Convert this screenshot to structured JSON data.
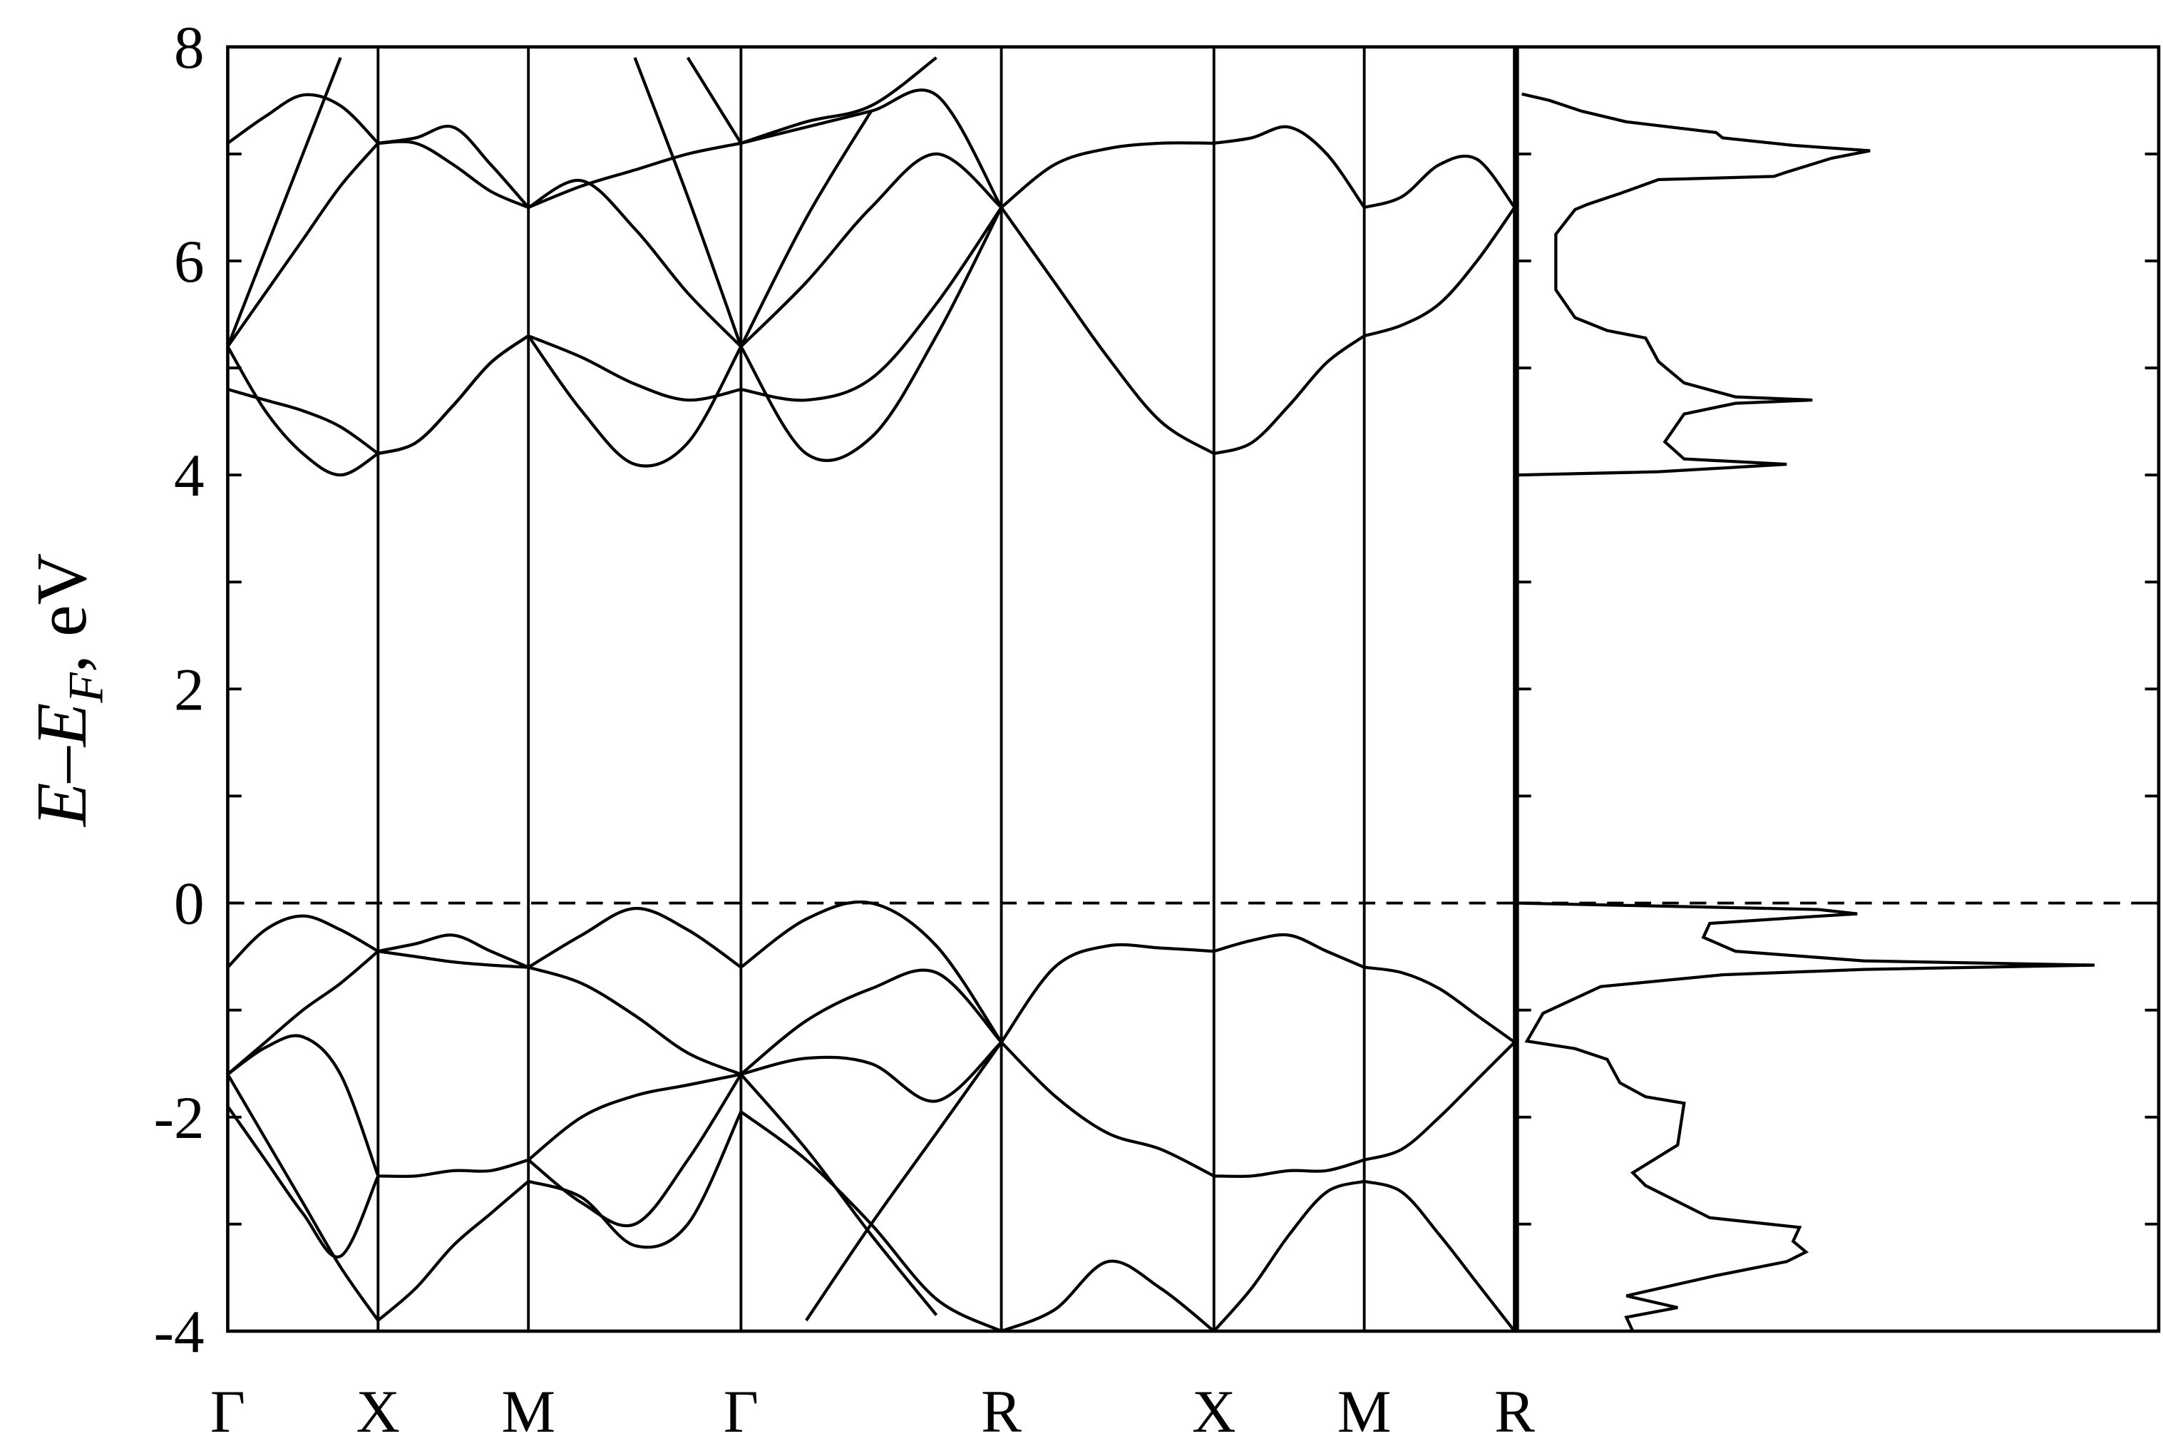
{
  "chart_data": {
    "type": "line",
    "ylabel": [
      "E",
      "–",
      "E",
      "F",
      ", eV"
    ],
    "color": "#000000",
    "xlim": [
      0,
      4.28
    ],
    "xticks": [
      {
        "value": 0,
        "label": "Γ"
      },
      {
        "value": 0.5,
        "label": "X"
      },
      {
        "value": 1.0,
        "label": "M"
      },
      {
        "value": 1.707,
        "label": "Γ"
      },
      {
        "value": 2.573,
        "label": "R"
      },
      {
        "value": 3.28,
        "label": "X"
      },
      {
        "value": 3.78,
        "label": "M"
      },
      {
        "value": 4.28,
        "label": "R"
      }
    ],
    "xgrid": true,
    "ylim": [
      -4,
      8
    ],
    "yticks": [
      -4,
      -2,
      0,
      2,
      4,
      6,
      8
    ],
    "yminorticks": [
      -3,
      -1,
      1,
      3,
      5,
      7
    ],
    "hline": 0,
    "hline_style": "dashed",
    "x": [
      0,
      0.125,
      0.25,
      0.375,
      0.5,
      0.625,
      0.75,
      0.875,
      1.0,
      1.177,
      1.354,
      1.53,
      1.707,
      1.924,
      2.14,
      2.357,
      2.573,
      2.75,
      2.927,
      3.103,
      3.28,
      3.405,
      3.53,
      3.655,
      3.78,
      3.905,
      4.03,
      4.155,
      4.28
    ],
    "series": [
      {
        "values": [
          -0.6,
          -0.25,
          -0.12,
          -0.25,
          -0.45,
          -0.38,
          -0.3,
          -0.45,
          -0.6,
          -0.3,
          -0.05,
          -0.25,
          -0.6,
          -0.15,
          0,
          -0.4,
          -1.3,
          -0.6,
          -0.4,
          -0.42,
          -0.45,
          -0.35,
          -0.3,
          -0.45,
          -0.6,
          -0.65,
          -0.8,
          -1.05,
          -1.3
        ]
      },
      {
        "values": [
          -1.6,
          -1.3,
          -1.0,
          -0.75,
          -0.45,
          -0.5,
          -0.55,
          -0.58,
          -0.6,
          -0.75,
          -1.05,
          -1.4,
          -1.6,
          -1.1,
          -0.8,
          -0.65,
          -1.3,
          -1.8,
          -2.15,
          -2.3,
          -2.55,
          -2.55,
          -2.5,
          -2.5,
          -2.4,
          -2.3,
          -2.0,
          -1.65,
          -1.3
        ]
      },
      {
        "values": [
          -1.6,
          -1.35,
          -1.25,
          -1.6,
          -2.55,
          -2.55,
          -2.5,
          -2.5,
          -2.4,
          -2.0,
          -1.8,
          -1.7,
          -1.6,
          -1.45,
          -1.5,
          -1.85,
          -1.3,
          null,
          null,
          null,
          null,
          null,
          null,
          null,
          null,
          null,
          null,
          null,
          null
        ]
      },
      {
        "values": [
          -1.9,
          -2.4,
          -2.9,
          -3.3,
          -2.55,
          null,
          null,
          null,
          -2.4,
          -2.8,
          -3.0,
          -2.4,
          -1.6,
          -2.3,
          -3.1,
          -3.85,
          null,
          null,
          null,
          null,
          null,
          null,
          null,
          null,
          null,
          null,
          null,
          null,
          null
        ]
      },
      {
        "values": [
          -1.6,
          -2.2,
          -2.8,
          -3.4,
          -3.9,
          -3.6,
          -3.2,
          -2.9,
          -2.6,
          -2.75,
          -3.2,
          -3.0,
          -1.95,
          -2.4,
          -3.0,
          -3.7,
          -4.0,
          -3.8,
          -3.35,
          -3.6,
          -4.0,
          -3.6,
          -3.1,
          -2.7,
          -2.6,
          -2.7,
          -3.1,
          -3.55,
          -4.0
        ]
      },
      {
        "values": [
          null,
          null,
          null,
          null,
          null,
          null,
          null,
          null,
          null,
          null,
          null,
          null,
          null,
          -3.9,
          -3.0,
          -2.15,
          -1.3,
          null,
          null,
          null,
          null,
          null,
          null,
          null,
          null,
          null,
          null,
          null,
          null
        ]
      },
      {
        "values": [
          5.2,
          4.6,
          4.2,
          4.0,
          4.2,
          4.3,
          4.65,
          5.05,
          5.3,
          4.6,
          4.1,
          4.3,
          5.2,
          4.2,
          4.35,
          5.3,
          6.5,
          5.8,
          5.1,
          4.5,
          4.2,
          4.3,
          4.65,
          5.05,
          5.3,
          5.4,
          5.6,
          6.0,
          6.5
        ]
      },
      {
        "values": [
          4.8,
          4.7,
          4.6,
          4.45,
          4.2,
          4.3,
          4.65,
          5.05,
          5.3,
          5.1,
          4.85,
          4.7,
          4.8,
          4.7,
          4.9,
          5.6,
          6.5,
          6.9,
          7.05,
          7.1,
          7.1,
          7.15,
          7.25,
          7.0,
          6.5,
          6.6,
          6.9,
          6.95,
          6.5
        ]
      },
      {
        "values": [
          5.2,
          5.7,
          6.2,
          6.7,
          7.1,
          7.15,
          7.25,
          6.9,
          6.5,
          6.7,
          6.85,
          7.0,
          7.1,
          7.25,
          7.4,
          7.55,
          6.5,
          null,
          null,
          null,
          null,
          null,
          null,
          null,
          null,
          null,
          null,
          null,
          null
        ]
      },
      {
        "values": [
          7.1,
          7.35,
          7.55,
          7.45,
          7.1,
          7.1,
          6.9,
          6.65,
          6.5,
          6.75,
          6.3,
          5.7,
          5.2,
          5.8,
          6.5,
          7.0,
          6.5,
          null,
          null,
          null,
          null,
          null,
          null,
          null,
          null,
          null,
          null,
          null,
          null
        ]
      },
      {
        "values": [
          5.2,
          6.1,
          7.0,
          7.9,
          null,
          null,
          null,
          null,
          null,
          null,
          null,
          7.9,
          7.1,
          7.3,
          7.45,
          7.9,
          null,
          null,
          null,
          null,
          null,
          null,
          null,
          null,
          null,
          null,
          null,
          null,
          null
        ]
      },
      {
        "values": [
          null,
          null,
          null,
          null,
          null,
          null,
          null,
          null,
          null,
          null,
          7.9,
          6.6,
          5.2,
          6.4,
          7.4,
          null,
          null,
          null,
          null,
          null,
          null,
          null,
          null,
          null,
          null,
          null,
          null,
          null,
          null
        ]
      }
    ],
    "dos": {
      "xlim": [
        0,
        1
      ],
      "energy": [
        7.56,
        7.5,
        7.4,
        7.3,
        7.2,
        7.15,
        7.08,
        7.03,
        6.96,
        6.83,
        6.79,
        6.76,
        6.63,
        6.53,
        6.48,
        6.25,
        5.73,
        5.47,
        5.35,
        5.28,
        5.06,
        4.86,
        4.73,
        4.7,
        4.67,
        4.57,
        4.31,
        4.15,
        4.1,
        4.03,
        4.0,
        0,
        -0.06,
        -0.1,
        -0.13,
        -0.19,
        -0.32,
        -0.45,
        -0.54,
        -0.58,
        -0.62,
        -0.67,
        -0.78,
        -1.03,
        -1.29,
        -1.36,
        -1.46,
        -1.68,
        -1.81,
        -1.87,
        -2.26,
        -2.52,
        -2.64,
        -2.94,
        -3.03,
        -3.16,
        -3.26,
        -3.35,
        -3.48,
        -3.67,
        -3.78,
        -3.87,
        -4.0
      ],
      "values": [
        0.007,
        0.05,
        0.1,
        0.17,
        0.31,
        0.32,
        0.43,
        0.55,
        0.49,
        0.42,
        0.4,
        0.22,
        0.16,
        0.11,
        0.09,
        0.06,
        0.06,
        0.09,
        0.14,
        0.2,
        0.22,
        0.26,
        0.34,
        0.46,
        0.34,
        0.26,
        0.23,
        0.26,
        0.42,
        0.22,
        0,
        0,
        0.47,
        0.53,
        0.45,
        0.3,
        0.29,
        0.34,
        0.54,
        0.9,
        0.54,
        0.32,
        0.13,
        0.04,
        0.015,
        0.09,
        0.14,
        0.16,
        0.2,
        0.26,
        0.25,
        0.18,
        0.2,
        0.3,
        0.44,
        0.43,
        0.45,
        0.42,
        0.31,
        0.17,
        0.25,
        0.17,
        0.18
      ]
    }
  }
}
